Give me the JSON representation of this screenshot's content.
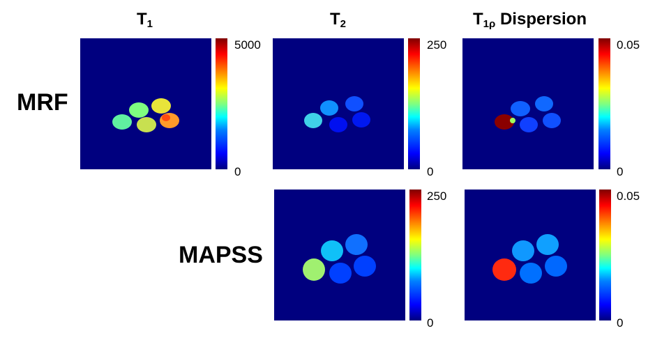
{
  "columns": [
    {
      "id": "t1",
      "main": "T",
      "sub": "1",
      "suffix": ""
    },
    {
      "id": "t2",
      "main": "T",
      "sub": "2",
      "suffix": ""
    },
    {
      "id": "t1rho",
      "main": "T",
      "sub": "1ρ",
      "suffix": " Dispersion"
    }
  ],
  "rows": [
    {
      "id": "mrf",
      "label": "MRF"
    },
    {
      "id": "mapss",
      "label": "MAPSS"
    }
  ],
  "panels": [
    {
      "row": "mrf",
      "column": "t1",
      "colorbar_max": "5000",
      "colorbar_min": "0"
    },
    {
      "row": "mrf",
      "column": "t2",
      "colorbar_max": "250",
      "colorbar_min": "0"
    },
    {
      "row": "mrf",
      "column": "t1rho",
      "colorbar_max": "0.05",
      "colorbar_min": "0"
    },
    {
      "row": "mapss",
      "column": "t2",
      "colorbar_max": "250",
      "colorbar_min": "0"
    },
    {
      "row": "mapss",
      "column": "t1rho",
      "colorbar_max": "0.05",
      "colorbar_min": "0"
    }
  ],
  "colors": {
    "background": "#00007f",
    "colormap": [
      "#00007f",
      "#0000ff",
      "#0080ff",
      "#00ffff",
      "#80ff80",
      "#ffff00",
      "#ff8000",
      "#ff0000",
      "#7f0000"
    ]
  }
}
